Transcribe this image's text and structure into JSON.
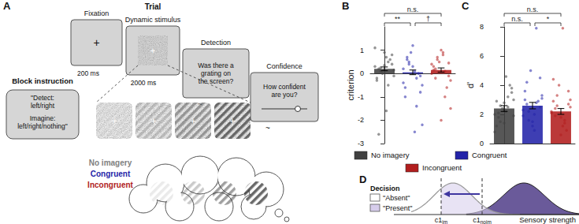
{
  "figure": {
    "A": {
      "label": "A",
      "block_instruction": {
        "title": "Block instruction",
        "lines": [
          "\"Detect:",
          "left/right",
          "Imagine:",
          "left/right/nothing\""
        ]
      },
      "trial_title": "Trial",
      "fixation_cross": "+",
      "screens": [
        {
          "title": "Fixation",
          "duration": "200 ms"
        },
        {
          "title": "Dynamic stimulus",
          "duration": "2000 ms"
        },
        {
          "title": "Detection",
          "question": [
            "Was there a",
            "grating on",
            "the screen?"
          ],
          "duration": "~"
        },
        {
          "title": "Confidence",
          "question": [
            "How confident",
            "are you?"
          ],
          "duration": "~"
        }
      ],
      "conditions": [
        {
          "name": "No imagery",
          "color": "#7f7f7f"
        },
        {
          "name": "Congruent",
          "color": "#1f1fa8"
        },
        {
          "name": "Incongruent",
          "color": "#b01c1c"
        }
      ]
    },
    "D": {
      "label": "D",
      "decision_title": "Decision",
      "decision_labels": [
        "\"Absent\"",
        "\"Present\""
      ],
      "thresholds": [
        {
          "main": "c1",
          "sub": "im"
        },
        {
          "main": "c1",
          "sub": "noim"
        }
      ],
      "x_label": "Sensory strength"
    }
  },
  "chart_data": [
    {
      "type": "bar",
      "panel_label": "B",
      "y_label": "criterion",
      "categories": [
        "No imagery",
        "Congruent",
        "Incongruent"
      ],
      "values": [
        0.2,
        0.05,
        0.15
      ],
      "errors": [
        0.08,
        0.1,
        0.09
      ],
      "colors": [
        "#404040",
        "#2323a8",
        "#b21e1e"
      ],
      "ylim": [
        -3,
        2
      ],
      "yticks": [
        -3,
        -2,
        -1,
        0,
        1
      ],
      "tick_labels": "y",
      "points": [
        [
          0.3,
          0.5,
          0.1,
          -0.1,
          0.7,
          0.2,
          0.4,
          0.9,
          -0.3,
          0.6,
          0.0,
          1.1,
          -0.5,
          0.25,
          0.15,
          -1.6,
          -2.6,
          0.8,
          0.35,
          -0.2
        ],
        [
          0.2,
          -0.2,
          0.5,
          -0.5,
          0.1,
          0.7,
          -0.8,
          0.3,
          -1.0,
          0.0,
          0.9,
          -0.4,
          -1.4,
          0.4,
          -2.2,
          -2.5,
          0.6,
          -0.1,
          1.2,
          -0.6
        ],
        [
          0.4,
          0.1,
          0.6,
          -0.3,
          0.8,
          0.2,
          -0.1,
          1.0,
          0.3,
          -0.6,
          0.5,
          0.0,
          -1.0,
          0.7,
          -1.5,
          0.9,
          -0.2,
          0.45,
          -2.0,
          0.15
        ]
      ],
      "annotations": [
        {
          "from": 0,
          "to": 2,
          "text": "n.s."
        },
        {
          "from": 0,
          "to": 1,
          "text": "**"
        },
        {
          "from": 1,
          "to": 2,
          "text": "†"
        }
      ]
    },
    {
      "type": "bar",
      "panel_label": "C",
      "y_label": "d'",
      "categories": [
        "No imagery",
        "Congruent",
        "Incongruent"
      ],
      "values": [
        2.4,
        2.6,
        2.2
      ],
      "errors": [
        0.2,
        0.22,
        0.2
      ],
      "colors": [
        "#404040",
        "#2323a8",
        "#b21e1e"
      ],
      "ylim": [
        0,
        8
      ],
      "yticks": [
        0,
        2,
        4,
        6,
        8
      ],
      "tick_labels": "y",
      "points": [
        [
          2.0,
          2.5,
          1.5,
          3.0,
          2.2,
          1.8,
          3.5,
          2.8,
          1.2,
          4.0,
          2.4,
          0.8,
          3.2,
          2.6,
          1.9,
          4.6,
          2.1,
          3.8,
          1.4,
          2.9
        ],
        [
          2.3,
          2.8,
          1.6,
          3.3,
          2.0,
          4.2,
          2.5,
          1.2,
          3.6,
          2.9,
          5.0,
          1.9,
          7.9,
          2.2,
          3.1,
          0.9,
          2.7,
          4.5,
          1.5,
          3.0
        ],
        [
          2.1,
          1.6,
          2.6,
          3.0,
          1.2,
          2.4,
          3.6,
          1.8,
          2.9,
          0.9,
          4.0,
          2.2,
          1.4,
          3.3,
          2.5,
          7.9,
          1.9,
          2.7,
          0.6,
          4.4
        ]
      ],
      "annotations": [
        {
          "from": 0,
          "to": 2,
          "text": "n.s."
        },
        {
          "from": 0,
          "to": 1,
          "text": "n.s."
        },
        {
          "from": 1,
          "to": 2,
          "text": "*"
        }
      ]
    }
  ]
}
